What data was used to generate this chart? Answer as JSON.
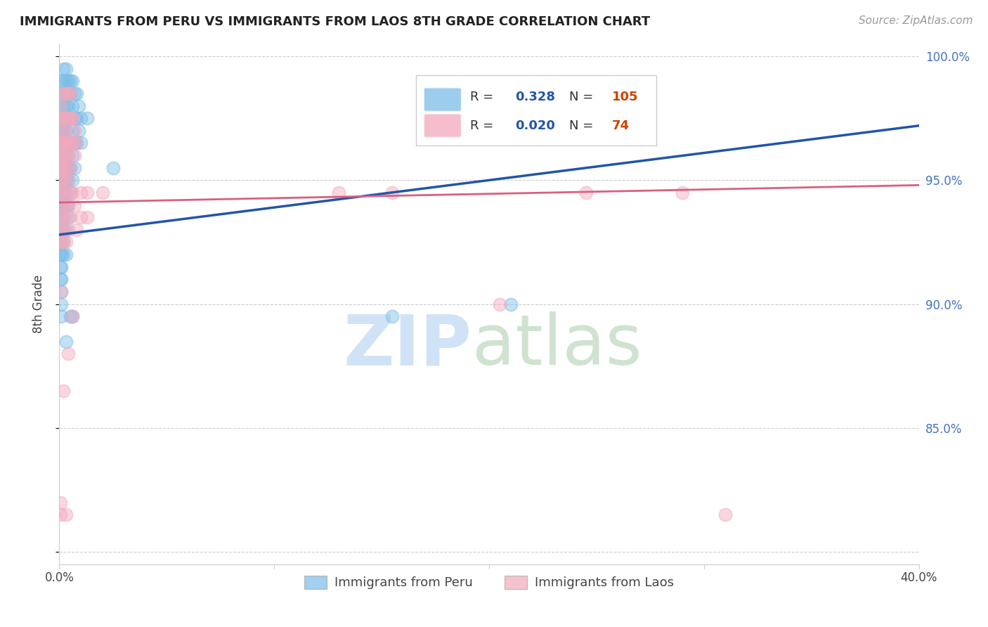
{
  "title": "IMMIGRANTS FROM PERU VS IMMIGRANTS FROM LAOS 8TH GRADE CORRELATION CHART",
  "source": "Source: ZipAtlas.com",
  "ylabel": "8th Grade",
  "legend_blue_r": "0.328",
  "legend_blue_n": "105",
  "legend_pink_r": "0.020",
  "legend_pink_n": "74",
  "legend_blue_label": "Immigrants from Peru",
  "legend_pink_label": "Immigrants from Laos",
  "x_min": 0.0,
  "x_max": 0.4,
  "y_min": 0.795,
  "y_max": 1.005,
  "blue_color": "#7bbde8",
  "pink_color": "#f4a8bc",
  "blue_line_color": "#2255aa",
  "pink_line_color": "#d96080",
  "blue_scatter": [
    [
      0.0005,
      0.97
    ],
    [
      0.0005,
      0.96
    ],
    [
      0.0005,
      0.955
    ],
    [
      0.0005,
      0.95
    ],
    [
      0.0005,
      0.945
    ],
    [
      0.0005,
      0.94
    ],
    [
      0.0005,
      0.935
    ],
    [
      0.0005,
      0.93
    ],
    [
      0.0005,
      0.925
    ],
    [
      0.0005,
      0.92
    ],
    [
      0.0005,
      0.915
    ],
    [
      0.0005,
      0.91
    ],
    [
      0.001,
      0.99
    ],
    [
      0.001,
      0.985
    ],
    [
      0.001,
      0.98
    ],
    [
      0.001,
      0.975
    ],
    [
      0.001,
      0.97
    ],
    [
      0.001,
      0.965
    ],
    [
      0.001,
      0.96
    ],
    [
      0.001,
      0.955
    ],
    [
      0.001,
      0.95
    ],
    [
      0.001,
      0.945
    ],
    [
      0.001,
      0.94
    ],
    [
      0.001,
      0.935
    ],
    [
      0.001,
      0.93
    ],
    [
      0.001,
      0.925
    ],
    [
      0.001,
      0.92
    ],
    [
      0.001,
      0.915
    ],
    [
      0.001,
      0.91
    ],
    [
      0.001,
      0.905
    ],
    [
      0.001,
      0.9
    ],
    [
      0.001,
      0.895
    ],
    [
      0.002,
      0.995
    ],
    [
      0.002,
      0.99
    ],
    [
      0.002,
      0.985
    ],
    [
      0.002,
      0.98
    ],
    [
      0.002,
      0.975
    ],
    [
      0.002,
      0.97
    ],
    [
      0.002,
      0.965
    ],
    [
      0.002,
      0.96
    ],
    [
      0.002,
      0.955
    ],
    [
      0.002,
      0.95
    ],
    [
      0.002,
      0.945
    ],
    [
      0.002,
      0.94
    ],
    [
      0.002,
      0.935
    ],
    [
      0.002,
      0.93
    ],
    [
      0.002,
      0.925
    ],
    [
      0.002,
      0.92
    ],
    [
      0.003,
      0.995
    ],
    [
      0.003,
      0.99
    ],
    [
      0.003,
      0.985
    ],
    [
      0.003,
      0.98
    ],
    [
      0.003,
      0.975
    ],
    [
      0.003,
      0.97
    ],
    [
      0.003,
      0.965
    ],
    [
      0.003,
      0.96
    ],
    [
      0.003,
      0.955
    ],
    [
      0.003,
      0.95
    ],
    [
      0.003,
      0.945
    ],
    [
      0.003,
      0.94
    ],
    [
      0.003,
      0.93
    ],
    [
      0.003,
      0.92
    ],
    [
      0.003,
      0.885
    ],
    [
      0.004,
      0.99
    ],
    [
      0.004,
      0.985
    ],
    [
      0.004,
      0.98
    ],
    [
      0.004,
      0.975
    ],
    [
      0.004,
      0.965
    ],
    [
      0.004,
      0.96
    ],
    [
      0.004,
      0.955
    ],
    [
      0.004,
      0.95
    ],
    [
      0.004,
      0.94
    ],
    [
      0.004,
      0.935
    ],
    [
      0.005,
      0.99
    ],
    [
      0.005,
      0.985
    ],
    [
      0.005,
      0.975
    ],
    [
      0.005,
      0.965
    ],
    [
      0.005,
      0.955
    ],
    [
      0.005,
      0.945
    ],
    [
      0.005,
      0.895
    ],
    [
      0.006,
      0.99
    ],
    [
      0.006,
      0.98
    ],
    [
      0.006,
      0.97
    ],
    [
      0.006,
      0.96
    ],
    [
      0.006,
      0.95
    ],
    [
      0.006,
      0.895
    ],
    [
      0.007,
      0.985
    ],
    [
      0.007,
      0.975
    ],
    [
      0.007,
      0.965
    ],
    [
      0.007,
      0.955
    ],
    [
      0.008,
      0.985
    ],
    [
      0.008,
      0.975
    ],
    [
      0.008,
      0.965
    ],
    [
      0.009,
      0.98
    ],
    [
      0.009,
      0.97
    ],
    [
      0.01,
      0.975
    ],
    [
      0.01,
      0.965
    ],
    [
      0.013,
      0.975
    ],
    [
      0.025,
      0.955
    ],
    [
      0.155,
      0.895
    ],
    [
      0.21,
      0.9
    ]
  ],
  "pink_scatter": [
    [
      0.0005,
      0.965
    ],
    [
      0.0005,
      0.955
    ],
    [
      0.0005,
      0.95
    ],
    [
      0.0005,
      0.945
    ],
    [
      0.0005,
      0.94
    ],
    [
      0.0005,
      0.935
    ],
    [
      0.0005,
      0.93
    ],
    [
      0.0005,
      0.82
    ],
    [
      0.0005,
      0.815
    ],
    [
      0.001,
      0.98
    ],
    [
      0.001,
      0.975
    ],
    [
      0.001,
      0.97
    ],
    [
      0.001,
      0.965
    ],
    [
      0.001,
      0.96
    ],
    [
      0.001,
      0.955
    ],
    [
      0.001,
      0.95
    ],
    [
      0.001,
      0.945
    ],
    [
      0.001,
      0.935
    ],
    [
      0.001,
      0.925
    ],
    [
      0.001,
      0.905
    ],
    [
      0.002,
      0.985
    ],
    [
      0.002,
      0.975
    ],
    [
      0.002,
      0.97
    ],
    [
      0.002,
      0.965
    ],
    [
      0.002,
      0.96
    ],
    [
      0.002,
      0.955
    ],
    [
      0.002,
      0.95
    ],
    [
      0.002,
      0.94
    ],
    [
      0.002,
      0.93
    ],
    [
      0.002,
      0.925
    ],
    [
      0.002,
      0.865
    ],
    [
      0.003,
      0.985
    ],
    [
      0.003,
      0.975
    ],
    [
      0.003,
      0.965
    ],
    [
      0.003,
      0.96
    ],
    [
      0.003,
      0.955
    ],
    [
      0.003,
      0.945
    ],
    [
      0.003,
      0.935
    ],
    [
      0.003,
      0.925
    ],
    [
      0.003,
      0.815
    ],
    [
      0.004,
      0.985
    ],
    [
      0.004,
      0.975
    ],
    [
      0.004,
      0.965
    ],
    [
      0.004,
      0.96
    ],
    [
      0.004,
      0.95
    ],
    [
      0.004,
      0.94
    ],
    [
      0.004,
      0.93
    ],
    [
      0.004,
      0.88
    ],
    [
      0.005,
      0.985
    ],
    [
      0.005,
      0.975
    ],
    [
      0.005,
      0.965
    ],
    [
      0.005,
      0.955
    ],
    [
      0.005,
      0.945
    ],
    [
      0.005,
      0.935
    ],
    [
      0.006,
      0.975
    ],
    [
      0.006,
      0.965
    ],
    [
      0.006,
      0.945
    ],
    [
      0.006,
      0.895
    ],
    [
      0.007,
      0.97
    ],
    [
      0.007,
      0.96
    ],
    [
      0.007,
      0.94
    ],
    [
      0.008,
      0.965
    ],
    [
      0.008,
      0.93
    ],
    [
      0.01,
      0.945
    ],
    [
      0.01,
      0.935
    ],
    [
      0.013,
      0.945
    ],
    [
      0.013,
      0.935
    ],
    [
      0.02,
      0.945
    ],
    [
      0.13,
      0.945
    ],
    [
      0.155,
      0.945
    ],
    [
      0.175,
      0.97
    ],
    [
      0.205,
      0.9
    ],
    [
      0.245,
      0.945
    ],
    [
      0.29,
      0.945
    ],
    [
      0.31,
      0.815
    ]
  ],
  "blue_line_x": [
    0.0,
    0.4
  ],
  "blue_line_y": [
    0.928,
    0.972
  ],
  "pink_line_x": [
    0.0,
    0.4
  ],
  "pink_line_y": [
    0.941,
    0.948
  ],
  "grid_ticks": [
    0.8,
    0.85,
    0.9,
    0.95,
    1.0
  ],
  "grid_color": "#cccccc",
  "background_color": "#ffffff",
  "title_fontsize": 13,
  "source_fontsize": 11,
  "tick_fontsize": 12,
  "ylabel_fontsize": 12
}
